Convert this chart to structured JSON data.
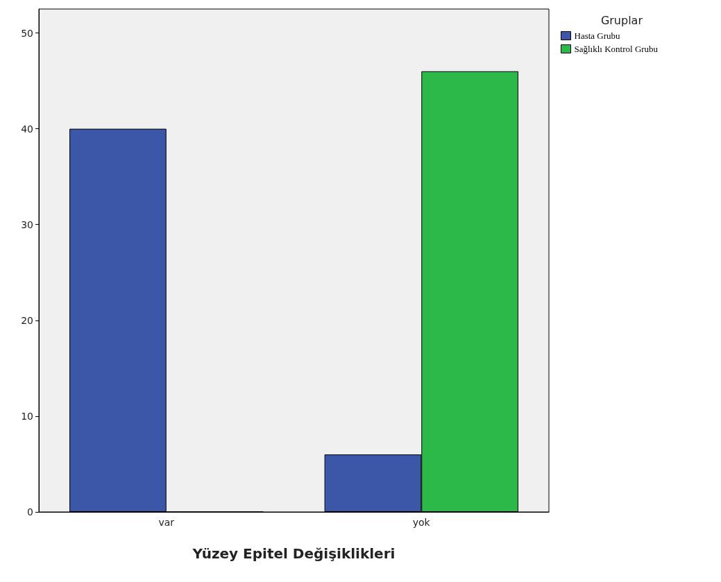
{
  "chart_data": {
    "type": "bar",
    "xlabel": "Yüzey Epitel Değişiklikleri",
    "legend_title": "Gruplar",
    "categories": [
      "var",
      "yok"
    ],
    "series": [
      {
        "name": "Hasta Grubu",
        "color": "#3c56a8",
        "values": [
          40,
          6
        ]
      },
      {
        "name": "Sağlıklı Kontrol Grubu",
        "color": "#2db84a",
        "values": [
          0,
          46
        ]
      }
    ],
    "ylim": [
      0,
      52.5
    ],
    "yticks": [
      0,
      10,
      20,
      30,
      40,
      50
    ],
    "grid": false,
    "legend": "top right"
  }
}
